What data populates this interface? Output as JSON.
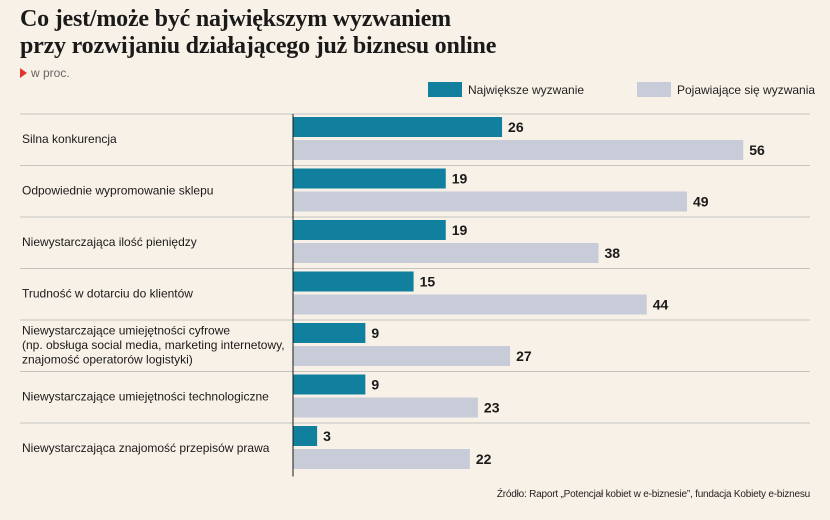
{
  "title_lines": [
    "Co jest/może być największym wyzwaniem",
    "przy rozwijaniu działającego już biznesu online"
  ],
  "subtitle": "w proc.",
  "source": "Źródło: Raport „Potencjał kobiet w e-biznesie”, fundacja Kobiety e-biznesu",
  "colors": {
    "series1": "#11809f",
    "series2": "#c8ccd8",
    "background": "#f8f1e7",
    "marker": "#e3342f"
  },
  "chart_data": {
    "type": "bar",
    "orientation": "horizontal",
    "title": "Co jest/może być największym wyzwaniem przy rozwijaniu działającego już biznesu online",
    "subtitle": "w proc.",
    "legend_position": "top-right",
    "grid": false,
    "xlim": [
      0,
      60
    ],
    "categories": [
      [
        "Silna konkurencja"
      ],
      [
        "Odpowiednie wypromowanie sklepu"
      ],
      [
        "Niewystarczająca ilość pieniędzy"
      ],
      [
        "Trudność w dotarciu do klientów"
      ],
      [
        "Niewystarczające umiejętności cyfrowe",
        "(np. obsługa social media, marketing internetowy,",
        "znajomość operatorów logistyki)"
      ],
      [
        "Niewystarczające umiejętności technologiczne"
      ],
      [
        "Niewystarczająca znajomość przepisów prawa"
      ]
    ],
    "series": [
      {
        "name": "Największe wyzwanie",
        "values": [
          26,
          19,
          19,
          15,
          9,
          9,
          3
        ]
      },
      {
        "name": "Pojawiające się wyzwania",
        "values": [
          56,
          49,
          38,
          44,
          27,
          23,
          22
        ]
      }
    ]
  }
}
